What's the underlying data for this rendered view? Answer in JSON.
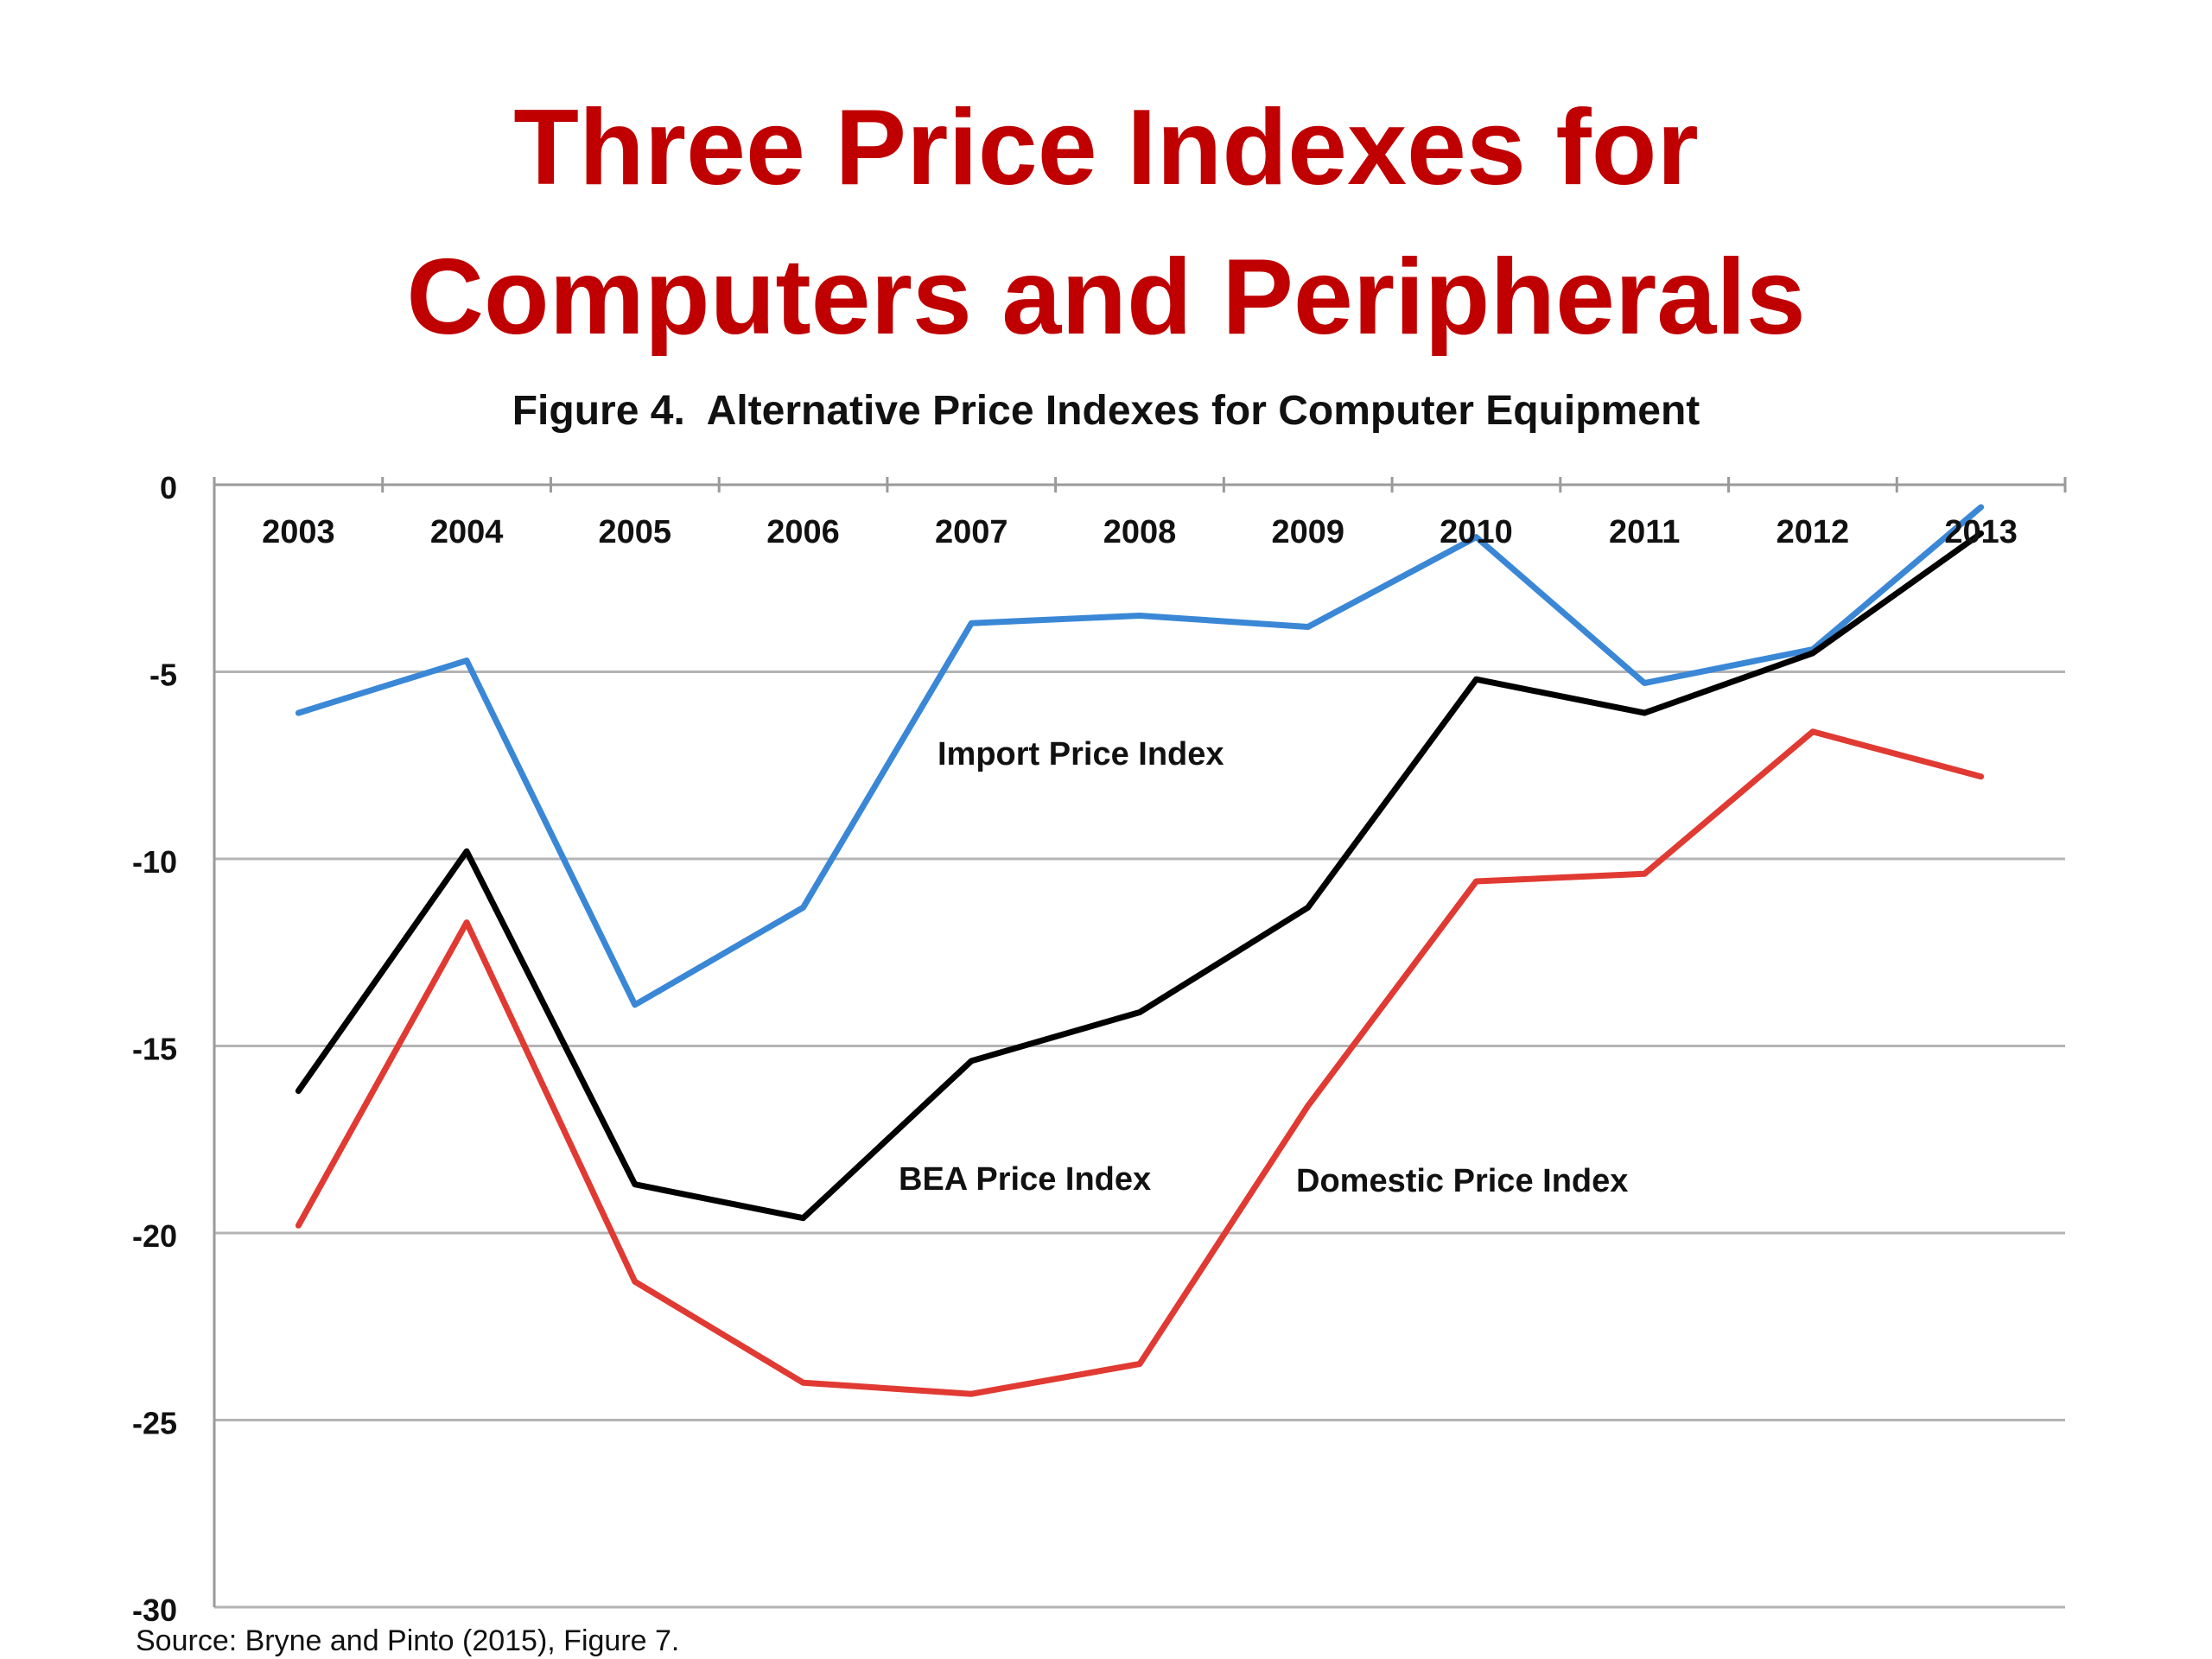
{
  "slide": {
    "title_line1": "Three Price Indexes for",
    "title_line2": "Computers and Peripherals",
    "title_color": "#c00000"
  },
  "source": "Source: Bryne and Pinto (2015), Figure 7.",
  "chart_data": {
    "type": "line",
    "title": "Figure 4.  Alternative Price Indexes for Computer Equipment",
    "x": [
      "2003",
      "2004",
      "2005",
      "2006",
      "2007",
      "2008",
      "2009",
      "2010",
      "2011",
      "2012",
      "2013"
    ],
    "ylim": [
      -30,
      0
    ],
    "yticks": [
      0,
      -5,
      -10,
      -15,
      -20,
      -25,
      -30
    ],
    "grid": true,
    "legend": "inline labels",
    "series": [
      {
        "name": "Import Price Index",
        "color": "#3a87d6",
        "values": [
          -6.1,
          -4.7,
          -13.9,
          -11.3,
          -3.7,
          -3.5,
          -3.8,
          -1.4,
          -5.3,
          -4.4,
          -0.6
        ]
      },
      {
        "name": "BEA Price Index",
        "color": "#000000",
        "values": [
          -16.2,
          -9.8,
          -18.7,
          -19.6,
          -15.4,
          -14.1,
          -11.3,
          -5.2,
          -6.1,
          -4.5,
          -1.3
        ]
      },
      {
        "name": "Domestic Price Index",
        "color": "#e03a33",
        "values": [
          -19.8,
          -11.7,
          -21.3,
          -24.0,
          -24.3,
          -23.5,
          -16.6,
          -10.6,
          -10.4,
          -6.6,
          -7.8
        ]
      }
    ]
  }
}
